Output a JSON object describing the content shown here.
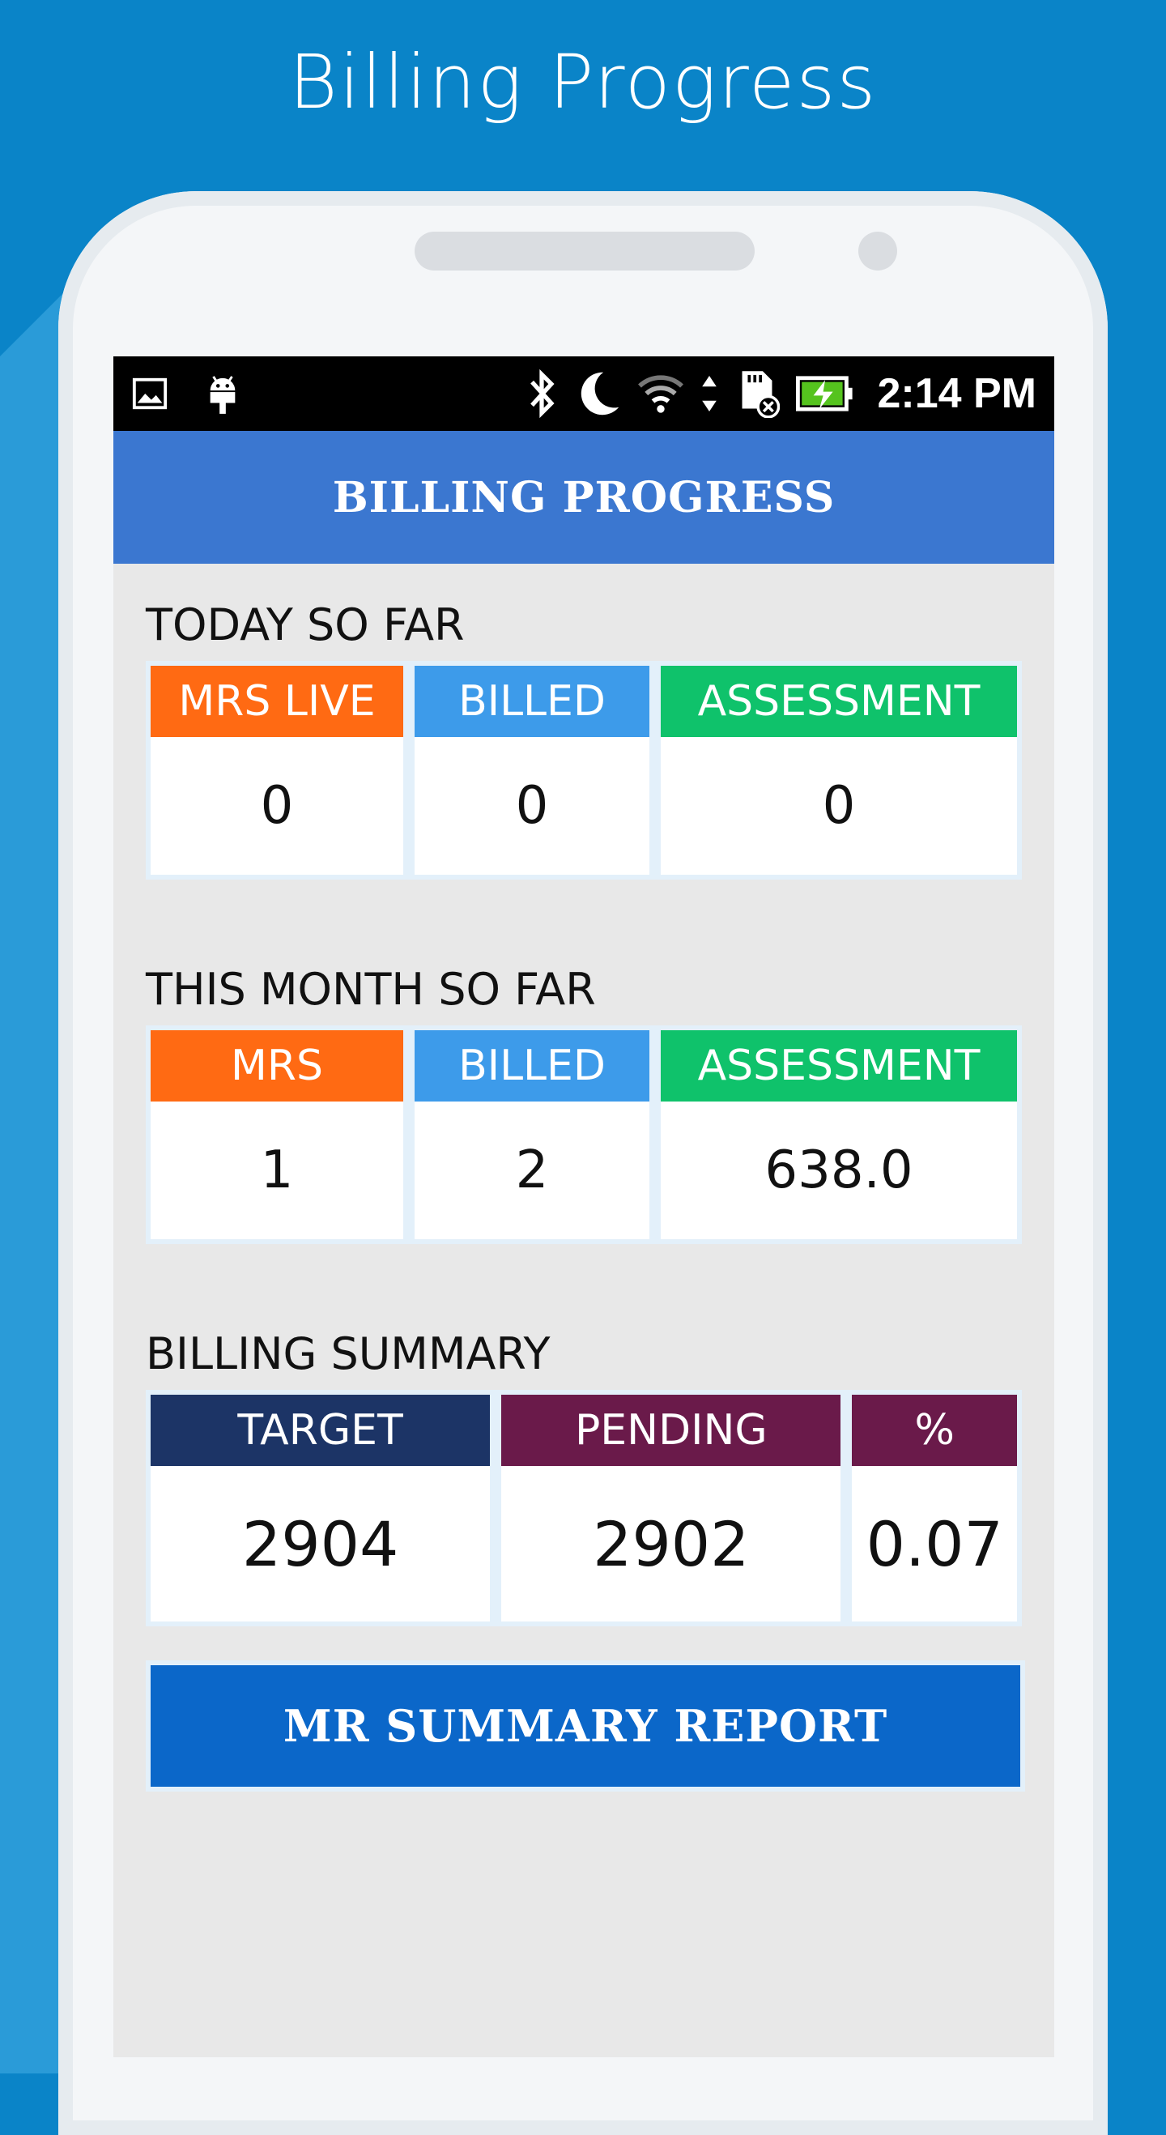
{
  "promo": {
    "title": "Billing Progress"
  },
  "status_bar": {
    "time": "2:14 PM",
    "icons_left": [
      "image-icon",
      "android-icon"
    ],
    "icons_right": [
      "bluetooth-icon",
      "moon-icon",
      "wifi-icon",
      "data-arrows-icon",
      "sd-card-icon",
      "battery-charging-icon"
    ]
  },
  "app_bar": {
    "title": "BILLING PROGRESS"
  },
  "today": {
    "title": "TODAY SO FAR",
    "cards": [
      {
        "label": "MRS LIVE",
        "value": "0",
        "color": "#FF6A13"
      },
      {
        "label": "BILLED",
        "value": "0",
        "color": "#3D9BEA"
      },
      {
        "label": "ASSESSMENT",
        "value": "0",
        "color": "#0FC26B"
      }
    ]
  },
  "month": {
    "title": "THIS MONTH SO FAR",
    "cards": [
      {
        "label": "MRS",
        "value": "1",
        "color": "#FF6A13"
      },
      {
        "label": "BILLED",
        "value": "2",
        "color": "#3D9BEA"
      },
      {
        "label": "ASSESSMENT",
        "value": "638.0",
        "color": "#0FC26B"
      }
    ]
  },
  "summary": {
    "title": "BILLING SUMMARY",
    "cards": [
      {
        "label": "TARGET",
        "value": "2904",
        "color": "#1C3466"
      },
      {
        "label": "PENDING",
        "value": "2902",
        "color": "#6A1A4A"
      },
      {
        "label": "%",
        "value": "0.07",
        "color": "#6A1A4A"
      }
    ]
  },
  "report_button": {
    "label": "MR SUMMARY REPORT",
    "color": "#0B67C9"
  }
}
